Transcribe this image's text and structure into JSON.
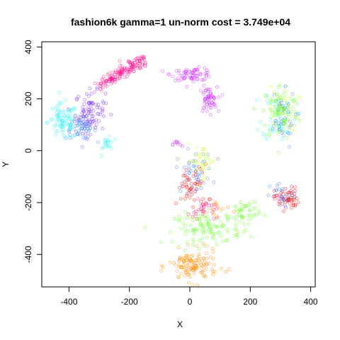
{
  "chart_data": {
    "type": "scatter",
    "title": "fashion6k gamma=1 un-norm cost = 3.749e+04",
    "xlabel": "X",
    "ylabel": "Y",
    "xlim": [
      -490,
      415
    ],
    "ylim": [
      -525,
      420
    ],
    "xticks": [
      -400,
      -200,
      0,
      200,
      400
    ],
    "yticks": [
      -400,
      -200,
      0,
      200,
      400
    ],
    "xtick_labels": [
      "-400",
      "-200",
      "0",
      "200",
      "400"
    ],
    "ytick_labels": [
      "-400",
      "-200",
      "0",
      "200",
      "400"
    ],
    "grid": false,
    "legend": "none",
    "marker": "open-circle",
    "point_opacity": 0.45,
    "clusters": [
      {
        "color": "#ff1493",
        "n": 160,
        "cx": -220,
        "cy": 320,
        "sx": 35,
        "sy": 18,
        "arc": {
          "x0": -300,
          "y0": 255,
          "x1": -150,
          "y1": 350
        }
      },
      {
        "color": "#7b2cf7",
        "n": 90,
        "cx": -330,
        "cy": 150,
        "sx": 25,
        "sy": 40
      },
      {
        "color": "#4682f5",
        "n": 60,
        "cx": -360,
        "cy": 85,
        "sx": 25,
        "sy": 20
      },
      {
        "color": "#2ff2f2",
        "n": 90,
        "cx": -420,
        "cy": 110,
        "sx": 25,
        "sy": 35
      },
      {
        "color": "#2ff2f2",
        "n": 20,
        "cx": -270,
        "cy": 30,
        "sx": 10,
        "sy": 20
      },
      {
        "color": "#cc33ff",
        "n": 70,
        "cx": 10,
        "cy": 295,
        "sx": 35,
        "sy": 12
      },
      {
        "color": "#cc33ff",
        "n": 60,
        "cx": 60,
        "cy": 195,
        "sx": 15,
        "sy": 25
      },
      {
        "color": "#cc33ff",
        "n": 10,
        "cx": -40,
        "cy": 25,
        "sx": 8,
        "sy": 8
      },
      {
        "color": "#66ff22",
        "n": 90,
        "cx": 300,
        "cy": 150,
        "sx": 30,
        "sy": 55
      },
      {
        "color": "#2ff2f2",
        "n": 40,
        "cx": 295,
        "cy": 140,
        "sx": 28,
        "sy": 50
      },
      {
        "color": "#4682f5",
        "n": 40,
        "cx": 300,
        "cy": 120,
        "sx": 25,
        "sy": 55
      },
      {
        "color": "#ccff33",
        "n": 30,
        "cx": 310,
        "cy": 160,
        "sx": 25,
        "sy": 45
      },
      {
        "color": "#ff0000",
        "n": 55,
        "cx": 320,
        "cy": -185,
        "sx": 20,
        "sy": 22
      },
      {
        "color": "#4682f5",
        "n": 25,
        "cx": 310,
        "cy": -175,
        "sx": 22,
        "sy": 25
      },
      {
        "color": "#ff0000",
        "n": 55,
        "cx": 10,
        "cy": -145,
        "sx": 25,
        "sy": 45
      },
      {
        "color": "#4682f5",
        "n": 45,
        "cx": 15,
        "cy": -80,
        "sx": 30,
        "sy": 40
      },
      {
        "color": "#ccff33",
        "n": 40,
        "cx": 40,
        "cy": -40,
        "sx": 25,
        "sy": 30
      },
      {
        "color": "#66ff22",
        "n": 110,
        "cx": 60,
        "cy": -300,
        "sx": 55,
        "sy": 30
      },
      {
        "color": "#66ff22",
        "n": 50,
        "cx": 180,
        "cy": -240,
        "sx": 25,
        "sy": 30
      },
      {
        "color": "#ff1493",
        "n": 25,
        "cx": 50,
        "cy": -230,
        "sx": 20,
        "sy": 20
      },
      {
        "color": "#ff8c00",
        "n": 130,
        "cx": 10,
        "cy": -445,
        "sx": 40,
        "sy": 30
      },
      {
        "color": "#ff8c00",
        "n": 15,
        "cx": 90,
        "cy": -230,
        "sx": 25,
        "sy": 25
      }
    ]
  }
}
